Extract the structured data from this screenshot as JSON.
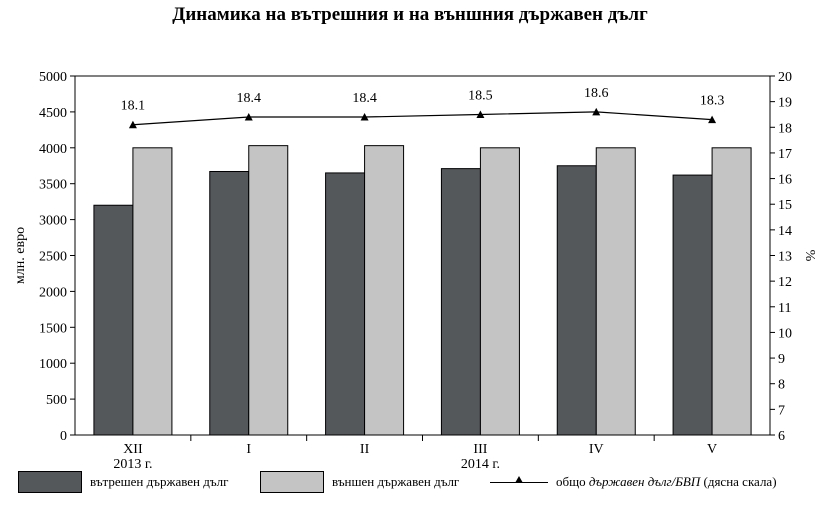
{
  "colors": {
    "internal": "#54585b",
    "external": "#c4c4c4",
    "line": "#000000"
  },
  "chart_data": {
    "type": "bar",
    "title": "Динамика на вътрешния и на външния държавен дълг",
    "ylabel": "млн. евро",
    "y2label": "%",
    "ylim": [
      0,
      5000
    ],
    "yticks": [
      "0",
      "500",
      "1000",
      "1500",
      "2000",
      "2500",
      "3000",
      "3500",
      "4000",
      "4500",
      "5000"
    ],
    "y2lim": [
      6,
      20
    ],
    "y2ticks": [
      "6",
      "7",
      "8",
      "9",
      "10",
      "11",
      "12",
      "13",
      "14",
      "15",
      "16",
      "17",
      "18",
      "19",
      "20"
    ],
    "categories": [
      "XII",
      "I",
      "II",
      "III",
      "IV",
      "V"
    ],
    "year_labels": [
      "2013 г.",
      "",
      "",
      "2014 г.",
      "",
      ""
    ],
    "series": [
      {
        "name": "вътрешен държавен дълг",
        "kind": "bar",
        "values": [
          3200,
          3670,
          3650,
          3710,
          3750,
          3620
        ]
      },
      {
        "name": "външен държавен дълг",
        "kind": "bar",
        "values": [
          4000,
          4030,
          4030,
          4000,
          4000,
          4000
        ]
      },
      {
        "name": "общо държавен дълг/БВП (дясна скала)",
        "kind": "line",
        "axis": "right",
        "values": [
          18.1,
          18.4,
          18.4,
          18.5,
          18.6,
          18.3
        ],
        "labels": [
          "18.1",
          "18.4",
          "18.4",
          "18.5",
          "18.6",
          "18.3"
        ]
      }
    ],
    "grid": false,
    "legend_position": "bottom"
  },
  "legend": {
    "internal": "вътрешен държавен дълг",
    "external": "външен държавен дълг",
    "line_prefix": "общо ",
    "line_italic": "държавен дълг/БВП",
    "line_suffix": " (дясна скала)"
  }
}
